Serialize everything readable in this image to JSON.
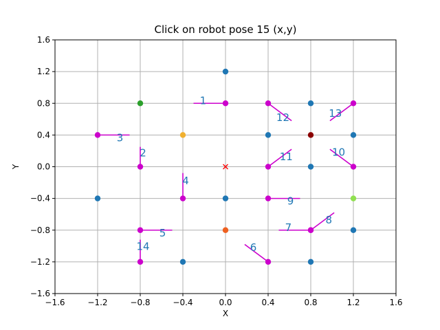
{
  "chart_data": {
    "type": "scatter",
    "title": "Click on robot pose 15 (x,y)",
    "xlabel": "X",
    "ylabel": "Y",
    "xlim": [
      -1.6,
      1.6
    ],
    "ylim": [
      -1.6,
      1.6
    ],
    "xticks": [
      -1.6,
      -1.2,
      -0.8,
      -0.4,
      0.0,
      0.4,
      0.8,
      1.2,
      1.6
    ],
    "yticks": [
      -1.6,
      -1.2,
      -0.8,
      -0.4,
      0.0,
      0.4,
      0.8,
      1.2,
      1.6
    ],
    "xtick_labels": [
      "−1.6",
      "−1.2",
      "−0.8",
      "−0.4",
      "0.0",
      "0.4",
      "0.8",
      "1.2",
      "1.6"
    ],
    "ytick_labels": [
      "−1.6",
      "−1.2",
      "−0.8",
      "−0.4",
      "0.0",
      "0.4",
      "0.8",
      "1.2",
      "1.6"
    ],
    "grid": true,
    "colors": {
      "landmark": "#1f77b4",
      "pose": "#cc00cc",
      "pose_label": "#1f77b4",
      "grid": "#b0b0b0",
      "origin_marker": "#ff0000"
    },
    "landmarks": [
      {
        "x": 0.0,
        "y": 1.2,
        "color": "#1f77b4"
      },
      {
        "x": 0.8,
        "y": 0.8,
        "color": "#1f77b4"
      },
      {
        "x": 0.4,
        "y": 0.4,
        "color": "#1f77b4"
      },
      {
        "x": 1.2,
        "y": 0.4,
        "color": "#1f77b4"
      },
      {
        "x": 0.8,
        "y": 0.0,
        "color": "#1f77b4"
      },
      {
        "x": -1.2,
        "y": -0.4,
        "color": "#1f77b4"
      },
      {
        "x": 0.0,
        "y": -0.4,
        "color": "#1f77b4"
      },
      {
        "x": 1.2,
        "y": -0.8,
        "color": "#1f77b4"
      },
      {
        "x": -0.4,
        "y": -1.2,
        "color": "#1f77b4"
      },
      {
        "x": 0.8,
        "y": -1.2,
        "color": "#1f77b4"
      },
      {
        "x": -0.8,
        "y": 0.8,
        "color": "#2ca02c"
      },
      {
        "x": -0.4,
        "y": 0.4,
        "color": "#f0b030"
      },
      {
        "x": 0.8,
        "y": 0.4,
        "color": "#8b0000"
      },
      {
        "x": 1.2,
        "y": -0.4,
        "color": "#90e050"
      },
      {
        "x": 0.0,
        "y": -0.8,
        "color": "#ee6020"
      }
    ],
    "origin_marker": {
      "x": 0.0,
      "y": 0.0
    },
    "poses": [
      {
        "label": "1",
        "x": 0.0,
        "y": 0.8,
        "hx": -0.3,
        "hy": 0.8
      },
      {
        "label": "2",
        "x": -0.8,
        "y": 0.0,
        "hx": -0.8,
        "hy": 0.25
      },
      {
        "label": "3",
        "x": -1.2,
        "y": 0.4,
        "hx": -0.9,
        "hy": 0.4
      },
      {
        "label": "4",
        "x": -0.4,
        "y": -0.4,
        "hx": -0.4,
        "hy": -0.08
      },
      {
        "label": "5",
        "x": -0.8,
        "y": -0.8,
        "hx": -0.5,
        "hy": -0.8
      },
      {
        "label": "6",
        "x": 0.4,
        "y": -1.2,
        "hx": 0.18,
        "hy": -0.98
      },
      {
        "label": "7",
        "x": 0.8,
        "y": -0.8,
        "hx": 0.5,
        "hy": -0.8
      },
      {
        "label": "8",
        "x": 0.8,
        "y": -0.8,
        "hx": 1.02,
        "hy": -0.58
      },
      {
        "label": "9",
        "x": 0.4,
        "y": -0.4,
        "hx": 0.7,
        "hy": -0.4
      },
      {
        "label": "10",
        "x": 1.2,
        "y": 0.0,
        "hx": 0.98,
        "hy": 0.22
      },
      {
        "label": "11",
        "x": 0.4,
        "y": 0.0,
        "hx": 0.62,
        "hy": 0.22
      },
      {
        "label": "12",
        "x": 0.4,
        "y": 0.8,
        "hx": 0.62,
        "hy": 0.58
      },
      {
        "label": "13",
        "x": 1.2,
        "y": 0.8,
        "hx": 0.98,
        "hy": 0.58
      },
      {
        "label": "14",
        "x": -0.8,
        "y": -1.2,
        "hx": -0.8,
        "hy": -0.92
      }
    ]
  }
}
